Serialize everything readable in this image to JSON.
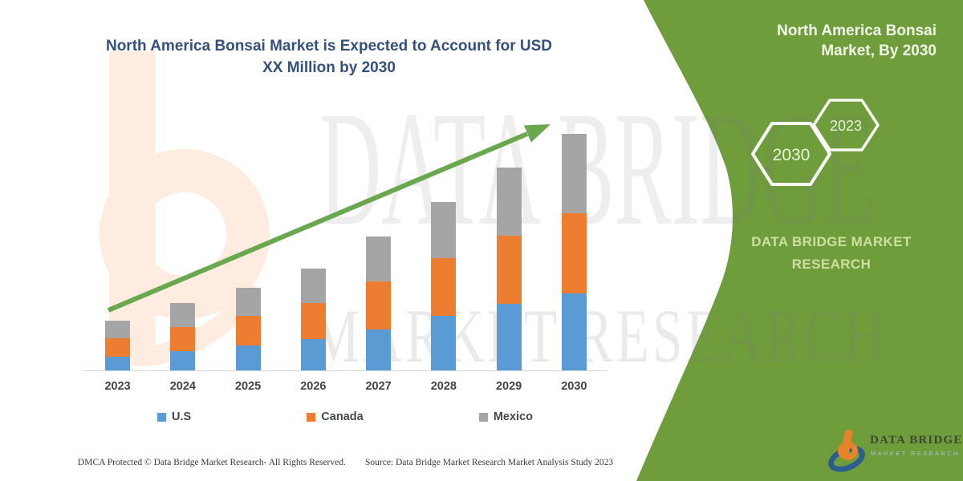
{
  "title": {
    "line1": "North America Bonsai Market is Expected to Account for USD",
    "line2": "XX Million by 2030"
  },
  "side_panel": {
    "heading_line1": "North America Bonsai",
    "heading_line2": "Market, By 2030",
    "hexagon_large_year": "2030",
    "hexagon_small_year": "2023",
    "brand_line1": "DATA BRIDGE MARKET",
    "brand_line2": "RESEARCH"
  },
  "chart_data": {
    "type": "bar",
    "stacked": true,
    "title": "North America Bonsai Market is Expected to Account for USD XX Million by 2030",
    "categories": [
      "2023",
      "2024",
      "2025",
      "2026",
      "2027",
      "2028",
      "2029",
      "2030"
    ],
    "series": [
      {
        "name": "U.S",
        "color": "#5B9BD5",
        "values": [
          18,
          25,
          32,
          40,
          52,
          69,
          84,
          97
        ]
      },
      {
        "name": "Canada",
        "color": "#ED7D31",
        "values": [
          23,
          30,
          37,
          45,
          60,
          72,
          85,
          100
        ]
      },
      {
        "name": "Mexico",
        "color": "#A5A5A5",
        "values": [
          22,
          30,
          35,
          43,
          56,
          70,
          85,
          99
        ]
      }
    ],
    "totals_relative": [
      63,
      85,
      104,
      128,
      168,
      211,
      254,
      296
    ],
    "value_units": "relative units (y-axis hidden; values estimated from bar heights, market stated as USD XX Million)",
    "y_axis_visible": false,
    "grid": false,
    "legend_position": "bottom",
    "annotations": [
      "green upward trend arrow from 2023 to 2030"
    ]
  },
  "watermarks": {
    "text_line1": "DATA BRIDGE",
    "text_line2": "MARKET RESEARCH"
  },
  "footer": {
    "left": "DMCA Protected © Data Bridge Market Research-  All Rights Reserved.",
    "right": "Source: Data Bridge Market Research  Market Analysis Study 2023"
  },
  "logo": {
    "brand": "DATA BRIDGE",
    "tagline": "MARKET RESEARCH"
  },
  "colors": {
    "panel_green": "#6f9d3c",
    "arrow_green": "#6aa84f",
    "title_blue": "#35507c",
    "us_blue": "#5B9BD5",
    "canada_orange": "#ED7D31",
    "mexico_gray": "#A5A5A5"
  }
}
